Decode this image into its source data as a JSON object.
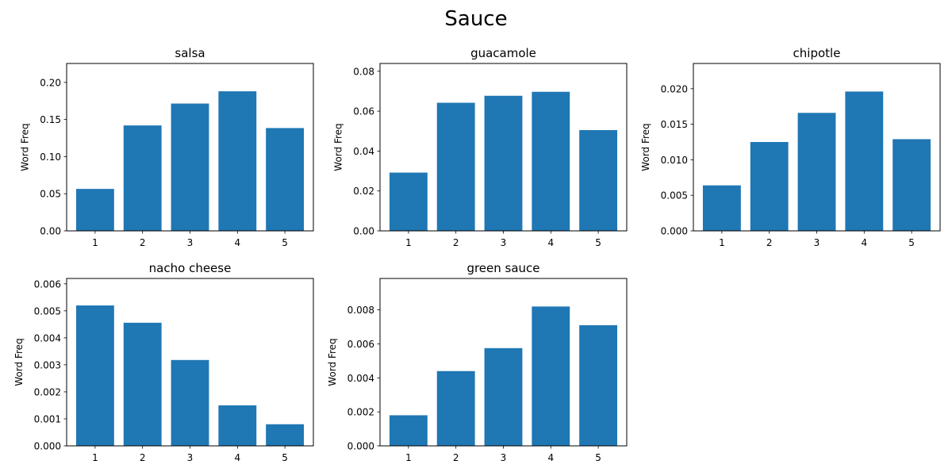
{
  "figure": {
    "title": "Sauce",
    "bar_color": "#1f77b4"
  },
  "chart_data": [
    {
      "type": "bar",
      "title": "salsa",
      "xlabel": "",
      "ylabel": "Word Freq",
      "categories": [
        "1",
        "2",
        "3",
        "4",
        "5"
      ],
      "values": [
        0.0565,
        0.142,
        0.1715,
        0.188,
        0.1385
      ],
      "ylim": [
        0,
        0.2255
      ],
      "yticks": [
        "0.00",
        "0.05",
        "0.10",
        "0.15",
        "0.20"
      ],
      "ytick_values": [
        0,
        0.05,
        0.1,
        0.15,
        0.2
      ]
    },
    {
      "type": "bar",
      "title": "guacamole",
      "xlabel": "",
      "ylabel": "Word Freq",
      "categories": [
        "1",
        "2",
        "3",
        "4",
        "5"
      ],
      "values": [
        0.0292,
        0.0642,
        0.0677,
        0.0697,
        0.0505
      ],
      "ylim": [
        0,
        0.0839
      ],
      "yticks": [
        "0.00",
        "0.02",
        "0.04",
        "0.06",
        "0.08"
      ],
      "ytick_values": [
        0,
        0.02,
        0.04,
        0.06,
        0.08
      ]
    },
    {
      "type": "bar",
      "title": "chipotle",
      "xlabel": "",
      "ylabel": "Word Freq",
      "categories": [
        "1",
        "2",
        "3",
        "4",
        "5"
      ],
      "values": [
        0.0064,
        0.0125,
        0.0166,
        0.0196,
        0.0129
      ],
      "ylim": [
        0,
        0.02355
      ],
      "yticks": [
        "0.000",
        "0.005",
        "0.010",
        "0.015",
        "0.020"
      ],
      "ytick_values": [
        0,
        0.005,
        0.01,
        0.015,
        0.02
      ]
    },
    {
      "type": "bar",
      "title": "nacho cheese",
      "xlabel": "",
      "ylabel": "Word Freq",
      "categories": [
        "1",
        "2",
        "3",
        "4",
        "5"
      ],
      "values": [
        0.0052,
        0.00456,
        0.00318,
        0.0015,
        0.0008
      ],
      "ylim": [
        0,
        0.0062
      ],
      "yticks": [
        "0.000",
        "0.001",
        "0.002",
        "0.003",
        "0.004",
        "0.005",
        "0.006"
      ],
      "ytick_values": [
        0,
        0.001,
        0.002,
        0.003,
        0.004,
        0.005,
        0.006
      ]
    },
    {
      "type": "bar",
      "title": "green sauce",
      "xlabel": "",
      "ylabel": "Word Freq",
      "categories": [
        "1",
        "2",
        "3",
        "4",
        "5"
      ],
      "values": [
        0.0018,
        0.0044,
        0.00575,
        0.0082,
        0.0071
      ],
      "ylim": [
        0,
        0.00985
      ],
      "yticks": [
        "0.000",
        "0.002",
        "0.004",
        "0.006",
        "0.008"
      ],
      "ytick_values": [
        0,
        0.002,
        0.004,
        0.006,
        0.008
      ]
    }
  ]
}
